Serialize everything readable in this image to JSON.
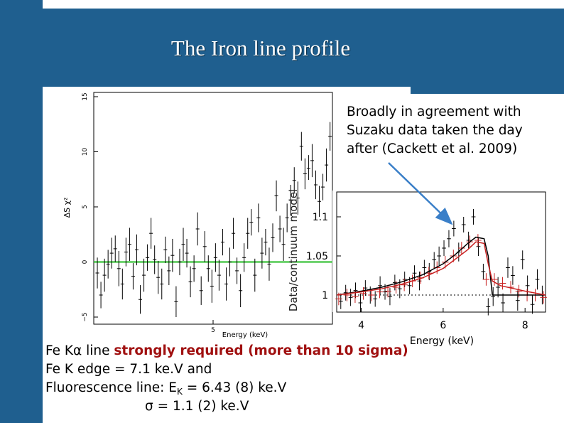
{
  "slide": {
    "title": "The Iron line profile",
    "colors": {
      "band": "#1f5f8f",
      "green_line": "#22bb22",
      "red_series": "#c82020",
      "text_red": "#a01010"
    }
  },
  "annotation": {
    "lines": [
      "Broadly in agreement with",
      "Suzaku data taken the day",
      "after (Cackett et al. 2009)"
    ]
  },
  "body_text": {
    "line1_prefix": "Fe Kα line ",
    "line1_emph": "strongly required (more than 10 sigma)",
    "line2": "Fe K edge =  7.1 ke.V  and",
    "line3_prefix": "Fluorescence line: E",
    "line3_sub": "K",
    "line3_suffix": " = 6.43 (8) ke.V",
    "line4": "σ = 1.1 (2) ke.V"
  },
  "chart_data": [
    {
      "type": "scatter",
      "ylabel": "ΔS χ²",
      "xlabel": "Energy (keV)",
      "xticks": [
        "5"
      ],
      "yticks": [
        "−5",
        "0",
        "5",
        "10",
        "15"
      ],
      "ylim": [
        -5,
        15
      ],
      "xlim": [
        3.0,
        7.0
      ],
      "reference_line": {
        "y": 0,
        "color": "#22bb22"
      },
      "x": [
        3.06,
        3.12,
        3.18,
        3.24,
        3.3,
        3.36,
        3.42,
        3.48,
        3.54,
        3.6,
        3.66,
        3.72,
        3.78,
        3.84,
        3.9,
        3.96,
        4.02,
        4.08,
        4.14,
        4.2,
        4.26,
        4.32,
        4.38,
        4.44,
        4.5,
        4.56,
        4.62,
        4.68,
        4.74,
        4.8,
        4.86,
        4.92,
        4.98,
        5.04,
        5.1,
        5.16,
        5.22,
        5.28,
        5.34,
        5.4,
        5.46,
        5.52,
        5.58,
        5.64,
        5.7,
        5.76,
        5.82,
        5.88,
        5.94,
        6.0,
        6.06,
        6.12,
        6.18,
        6.24,
        6.3,
        6.36,
        6.42,
        6.48,
        6.54,
        6.6,
        6.66,
        6.72,
        6.78,
        6.84,
        6.9,
        6.96
      ],
      "values": [
        -1.0,
        -3.0,
        -1.2,
        -0.2,
        0.8,
        1.2,
        -0.6,
        -2.0,
        0.9,
        1.6,
        -1.3,
        1.1,
        -3.4,
        -1.2,
        0.4,
        2.6,
        0.2,
        -1.4,
        -2.0,
        1.1,
        -0.8,
        0.6,
        -3.6,
        0.0,
        1.6,
        0.8,
        -1.8,
        -0.6,
        3.0,
        -2.6,
        1.4,
        -0.6,
        -2.2,
        0.4,
        -1.2,
        1.8,
        -2.0,
        0.0,
        2.6,
        -0.8,
        -2.6,
        0.4,
        2.6,
        3.6,
        -1.2,
        4.0,
        0.8,
        1.8,
        -0.2,
        2.2,
        6.0,
        3.0,
        1.6,
        4.0,
        5.6,
        7.4,
        5.8,
        10.5,
        8.0,
        8.5,
        9.2,
        7.0,
        5.5,
        6.8,
        8.8,
        11.4
      ],
      "errors": [
        1.4,
        1.2,
        1.5,
        1.3,
        1.4,
        1.2,
        1.6,
        1.4,
        1.3,
        1.5,
        1.2,
        1.4,
        1.3,
        1.5,
        1.2,
        1.4,
        1.3,
        1.5,
        1.4,
        1.2,
        1.3,
        1.5,
        1.4,
        1.2,
        1.5,
        1.3,
        1.4,
        1.2,
        1.5,
        1.3,
        1.4,
        1.2,
        1.5,
        1.3,
        1.4,
        1.2,
        1.5,
        1.3,
        1.4,
        1.2,
        1.5,
        1.3,
        1.4,
        1.2,
        1.5,
        1.3,
        1.4,
        1.2,
        1.5,
        1.3,
        1.4,
        1.2,
        1.5,
        1.3,
        1.4,
        1.2,
        1.5,
        1.3,
        1.4,
        1.2,
        1.5,
        1.3,
        1.4,
        1.2,
        1.5,
        1.3
      ]
    },
    {
      "type": "scatter",
      "ylabel": "Data/continuum model",
      "xlabel": "Energy (keV)",
      "xticks": [
        "4",
        "6",
        "8"
      ],
      "yticks": [
        "1",
        "1.05",
        "1.1"
      ],
      "xlim": [
        3.4,
        8.5
      ],
      "ylim": [
        0.98,
        1.13
      ],
      "baseline": 1.0,
      "series": [
        {
          "color": "#000000",
          "x": [
            3.5,
            3.62,
            3.74,
            3.86,
            3.98,
            4.1,
            4.22,
            4.34,
            4.46,
            4.58,
            4.7,
            4.82,
            4.94,
            5.06,
            5.18,
            5.3,
            5.42,
            5.54,
            5.66,
            5.78,
            5.9,
            6.02,
            6.14,
            6.26,
            6.38,
            6.5,
            6.62,
            6.74,
            6.86,
            6.98,
            7.1,
            7.22,
            7.34,
            7.46,
            7.58,
            7.7,
            7.82,
            7.94,
            8.06,
            8.18,
            8.3,
            8.42
          ],
          "values": [
            0.992,
            1.003,
            0.997,
            1.006,
            0.99,
            1.009,
            1.0,
            0.995,
            1.012,
            1.004,
            0.998,
            1.016,
            1.008,
            1.02,
            1.012,
            1.028,
            1.018,
            1.035,
            1.03,
            1.045,
            1.05,
            1.06,
            1.072,
            1.085,
            1.055,
            1.09,
            1.07,
            1.1,
            1.062,
            1.03,
            0.985,
            0.998,
            1.01,
            0.99,
            1.035,
            1.025,
            0.993,
            1.045,
            1.012,
            0.988,
            1.02,
            1.0
          ],
          "errors": [
            0.01,
            0.01,
            0.011,
            0.01,
            0.012,
            0.01,
            0.011,
            0.01,
            0.012,
            0.01,
            0.011,
            0.01,
            0.012,
            0.01,
            0.011,
            0.01,
            0.012,
            0.01,
            0.011,
            0.01,
            0.012,
            0.01,
            0.011,
            0.01,
            0.012,
            0.01,
            0.011,
            0.01,
            0.012,
            0.01,
            0.011,
            0.012,
            0.013,
            0.012,
            0.013,
            0.012,
            0.013,
            0.012,
            0.013,
            0.012,
            0.013,
            0.012
          ]
        },
        {
          "color": "#c82020",
          "x": [
            3.45,
            3.65,
            3.85,
            4.05,
            4.25,
            4.45,
            4.65,
            4.85,
            5.05,
            5.25,
            5.45,
            5.65,
            5.85,
            6.05,
            6.25,
            6.45,
            6.65,
            6.85,
            7.05,
            7.25,
            7.45,
            7.65,
            7.85,
            8.05,
            8.25,
            8.45
          ],
          "values": [
            0.995,
            1.0,
            0.998,
            1.002,
            1.0,
            1.004,
            1.005,
            1.01,
            1.013,
            1.018,
            1.022,
            1.028,
            1.035,
            1.042,
            1.05,
            1.06,
            1.068,
            1.07,
            1.02,
            1.02,
            1.015,
            1.01,
            1.005,
            1.0,
            1.0,
            0.997
          ],
          "errors": [
            0.008,
            0.008,
            0.008,
            0.008,
            0.008,
            0.008,
            0.008,
            0.008,
            0.008,
            0.008,
            0.008,
            0.008,
            0.008,
            0.008,
            0.008,
            0.008,
            0.008,
            0.008,
            0.008,
            0.008,
            0.008,
            0.008,
            0.008,
            0.008,
            0.008,
            0.008
          ]
        }
      ],
      "models": [
        {
          "color": "#000000",
          "x": [
            3.4,
            4.0,
            4.5,
            5.0,
            5.5,
            6.0,
            6.3,
            6.6,
            6.8,
            7.0,
            7.1,
            7.2,
            7.4,
            8.0,
            8.5
          ],
          "values": [
            1.0,
            1.005,
            1.01,
            1.017,
            1.026,
            1.04,
            1.052,
            1.066,
            1.074,
            1.072,
            1.05,
            1.0,
            1.0,
            1.0,
            1.0
          ]
        },
        {
          "color": "#c82020",
          "x": [
            3.4,
            4.0,
            4.5,
            5.0,
            5.5,
            6.0,
            6.3,
            6.6,
            6.8,
            7.0,
            7.1,
            7.2,
            7.4,
            8.0,
            8.5
          ],
          "values": [
            1.0,
            1.004,
            1.008,
            1.014,
            1.022,
            1.034,
            1.046,
            1.058,
            1.068,
            1.066,
            1.04,
            1.018,
            1.012,
            1.005,
            1.0
          ]
        }
      ]
    }
  ]
}
